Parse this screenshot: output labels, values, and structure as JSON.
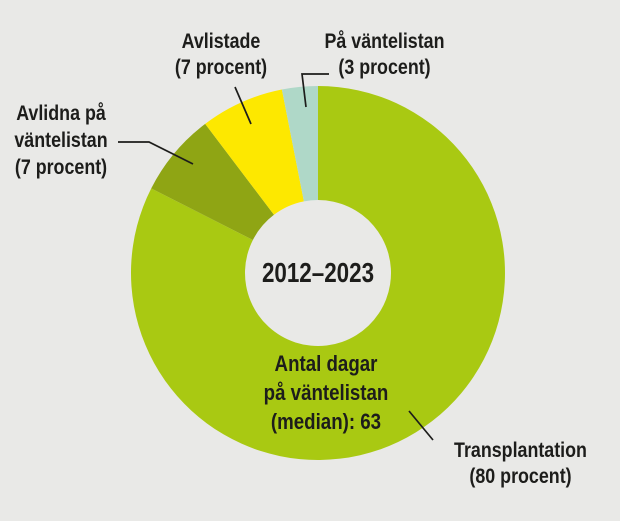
{
  "background_color": "#e9e9e7",
  "text_color": "#1d1d1b",
  "chart_data": {
    "type": "pie",
    "subtype": "donut",
    "direction": "clockwise",
    "start_angle_deg": 0,
    "legend_position": "callout-labels",
    "center_label": "2012–2023",
    "inner_annotation": {
      "lines": [
        "Antal dagar",
        "på väntelistan",
        "(median): 63"
      ],
      "full_text": "Antal dagar på väntelistan (median): 63"
    },
    "slices": [
      {
        "id": "transplantation",
        "name": "Transplantation",
        "percent": 80,
        "color": "#a9c912",
        "label_lines": [
          "Transplantation",
          "(80 procent)"
        ]
      },
      {
        "id": "avlidna-pa-vantelistan",
        "name": "Avlidna på väntelistan",
        "percent": 7,
        "color": "#8fa514",
        "label_lines": [
          "Avlidna på",
          "väntelistan",
          "(7 procent)"
        ]
      },
      {
        "id": "avlistade",
        "name": "Avlistade",
        "percent": 7,
        "color": "#fde800",
        "label_lines": [
          "Avlistade",
          "(7 procent)"
        ]
      },
      {
        "id": "pa-vantelistan",
        "name": "På väntelistan",
        "percent": 3,
        "color": "#afd8c8",
        "label_lines": [
          "På väntelistan",
          "(3 procent)"
        ]
      }
    ]
  }
}
